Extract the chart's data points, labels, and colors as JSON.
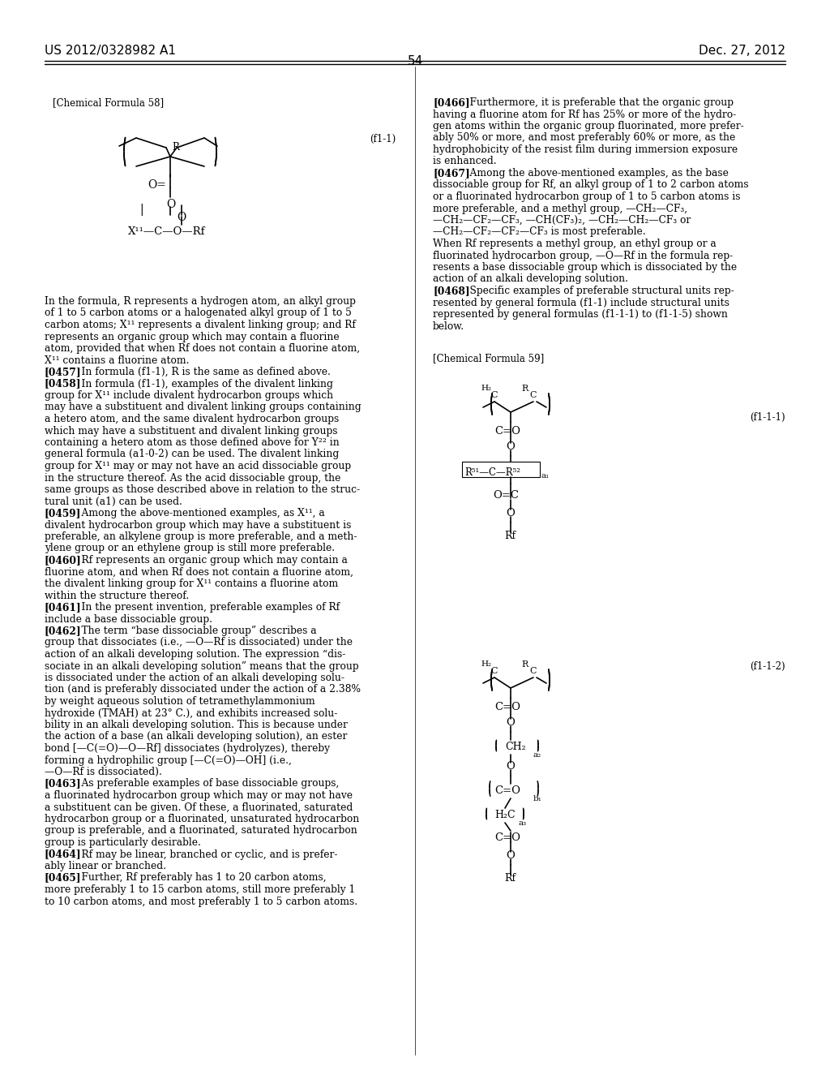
{
  "page_header_left": "US 2012/0328982 A1",
  "page_header_right": "Dec. 27, 2012",
  "page_number": "54",
  "background_color": "#ffffff",
  "text_color": "#000000",
  "chemical_formula_58_label": "[Chemical Formula 58]",
  "formula_f1_1_label": "(f1-1)",
  "chemical_formula_59_label": "[Chemical Formula 59]",
  "formula_f1_1_1_label": "(f1-1-1)",
  "formula_f1_1_2_label": "(f1-1-2)",
  "left_body_text": [
    "In the formula, R represents a hydrogen atom, an alkyl group",
    "of 1 to 5 carbon atoms or a halogenated alkyl group of 1 to 5",
    "carbon atoms; X¹¹ represents a divalent linking group; and Rf",
    "represents an organic group which may contain a fluorine",
    "atom, provided that when Rf does not contain a fluorine atom,",
    "X¹¹ contains a fluorine atom.",
    "[0457]    In formula (f1-1), R is the same as defined above.",
    "[0458]    In formula (f1-1), examples of the divalent linking",
    "group for X¹¹ include divalent hydrocarbon groups which",
    "may have a substituent and divalent linking groups containing",
    "a hetero atom, and the same divalent hydrocarbon groups",
    "which may have a substituent and divalent linking groups",
    "containing a hetero atom as those defined above for Y²² in",
    "general formula (a1-0-2) can be used. The divalent linking",
    "group for X¹¹ may or may not have an acid dissociable group",
    "in the structure thereof. As the acid dissociable group, the",
    "same groups as those described above in relation to the struc-",
    "tural unit (a1) can be used.",
    "[0459]    Among the above-mentioned examples, as X¹¹, a",
    "divalent hydrocarbon group which may have a substituent is",
    "preferable, an alkylene group is more preferable, and a meth-",
    "ylene group or an ethylene group is still more preferable.",
    "[0460]    Rf represents an organic group which may contain a",
    "fluorine atom, and when Rf does not contain a fluorine atom,",
    "the divalent linking group for X¹¹ contains a fluorine atom",
    "within the structure thereof.",
    "[0461]    In the present invention, preferable examples of Rf",
    "include a base dissociable group.",
    "[0462]    The term “base dissociable group” describes a",
    "group that dissociates (i.e., —O—Rf is dissociated) under the",
    "action of an alkali developing solution. The expression “dis-",
    "sociate in an alkali developing solution” means that the group",
    "is dissociated under the action of an alkali developing solu-",
    "tion (and is preferably dissociated under the action of a 2.38%",
    "by weight aqueous solution of tetramethylammonium",
    "hydroxide (TMAH) at 23° C.), and exhibits increased solu-",
    "bility in an alkali developing solution. This is because under",
    "the action of a base (an alkali developing solution), an ester",
    "bond [—C(=O)—O—Rf] dissociates (hydrolyzes), thereby",
    "forming a hydrophilic group [—C(=O)—OH] (i.e.,",
    "—O—Rf is dissociated).",
    "[0463]    As preferable examples of base dissociable groups,",
    "a fluorinated hydrocarbon group which may or may not have",
    "a substituent can be given. Of these, a fluorinated, saturated",
    "hydrocarbon group or a fluorinated, unsaturated hydrocarbon",
    "group is preferable, and a fluorinated, saturated hydrocarbon",
    "group is particularly desirable.",
    "[0464]    Rf may be linear, branched or cyclic, and is prefer-",
    "ably linear or branched.",
    "[0465]    Further, Rf preferably has 1 to 20 carbon atoms,",
    "more preferably 1 to 15 carbon atoms, still more preferably 1",
    "to 10 carbon atoms, and most preferably 1 to 5 carbon atoms."
  ],
  "right_body_text": [
    "[0466]    Furthermore, it is preferable that the organic group",
    "having a fluorine atom for Rf has 25% or more of the hydro-",
    "gen atoms within the organic group fluorinated, more prefer-",
    "ably 50% or more, and most preferably 60% or more, as the",
    "hydrophobicity of the resist film during immersion exposure",
    "is enhanced.",
    "[0467]    Among the above-mentioned examples, as the base",
    "dissociable group for Rf, an alkyl group of 1 to 2 carbon atoms",
    "or a fluorinated hydrocarbon group of 1 to 5 carbon atoms is",
    "more preferable, and a methyl group, —CH₂—CF₃,",
    "—CH₂—CF₂—CF₃, —CH(CF₃)₂, —CH₂—CH₂—CF₃ or",
    "—CH₂—CF₂—CF₂—CF₃ is most preferable.",
    "When Rf represents a methyl group, an ethyl group or a",
    "fluorinated hydrocarbon group, —O—Rf in the formula rep-",
    "resents a base dissociable group which is dissociated by the",
    "action of an alkali developing solution.",
    "[0468]    Specific examples of preferable structural units rep-",
    "resented by general formula (f1-1) include structural units",
    "represented by general formulas (f1-1-1) to (f1-1-5) shown",
    "below."
  ]
}
